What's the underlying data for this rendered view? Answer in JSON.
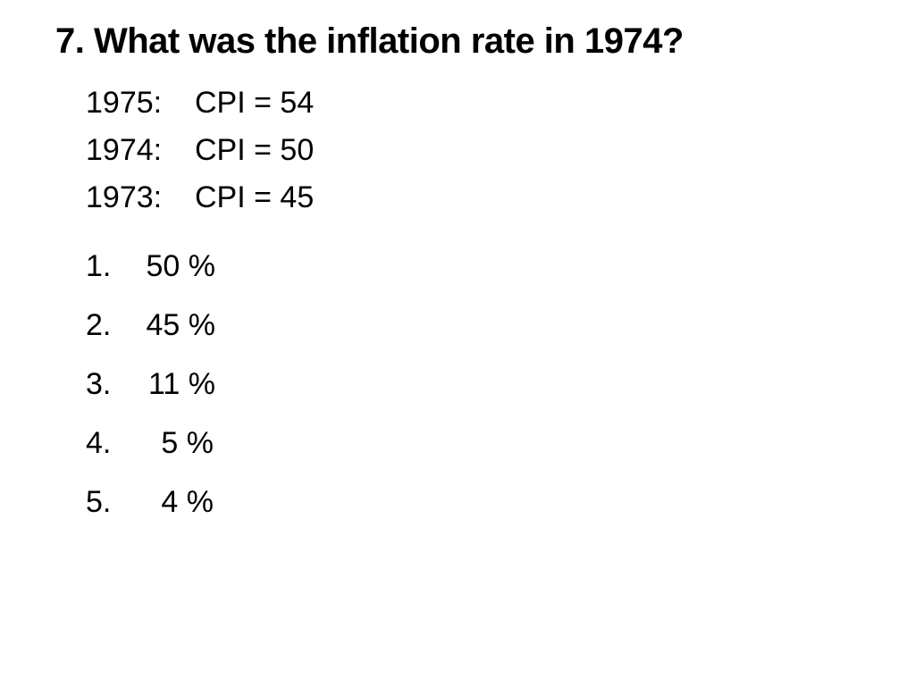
{
  "question": {
    "title": "7. What was the inflation rate in 1974?"
  },
  "cpi": [
    {
      "year": "1975:",
      "value": "CPI = 54"
    },
    {
      "year": "1974:",
      "value": "CPI = 50"
    },
    {
      "year": "1973:",
      "value": "CPI = 45"
    }
  ],
  "options": [
    {
      "num": "1.",
      "value": "50 %"
    },
    {
      "num": "2.",
      "value": "45 %"
    },
    {
      "num": "3.",
      "value": "11 %"
    },
    {
      "num": "4.",
      "value": "5 %"
    },
    {
      "num": "5.",
      "value": "4 %"
    }
  ]
}
